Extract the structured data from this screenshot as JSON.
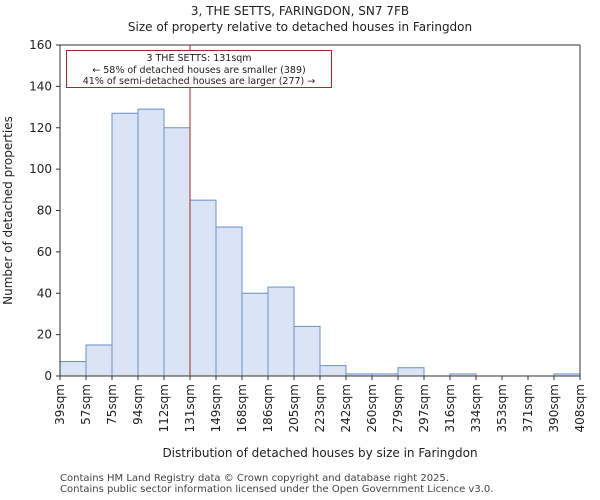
{
  "header": {
    "title": "3, THE SETTS, FARINGDON, SN7 7FB",
    "subtitle": "Size of property relative to detached houses in Faringdon"
  },
  "annotation": {
    "line1": "3 THE SETTS: 131sqm",
    "line2": "← 58% of detached houses are smaller (389)",
    "line3": "41% of semi-detached houses are larger (277) →"
  },
  "footer": {
    "line1": "Contains HM Land Registry data © Crown copyright and database right 2025.",
    "line2": "Contains public sector information licensed under the Open Government Licence v3.0."
  },
  "chart_data": {
    "type": "bar",
    "title": "Size of property relative to detached houses in Faringdon",
    "xlabel": "Distribution of detached houses by size in Faringdon",
    "ylabel": "Number of detached properties",
    "bin_edges": [
      "39sqm",
      "57sqm",
      "75sqm",
      "94sqm",
      "112sqm",
      "131sqm",
      "149sqm",
      "168sqm",
      "186sqm",
      "205sqm",
      "223sqm",
      "242sqm",
      "260sqm",
      "279sqm",
      "297sqm",
      "316sqm",
      "334sqm",
      "353sqm",
      "371sqm",
      "390sqm",
      "408sqm"
    ],
    "values": [
      7,
      15,
      127,
      129,
      120,
      85,
      72,
      40,
      43,
      24,
      5,
      1,
      1,
      4,
      0,
      1,
      0,
      0,
      0,
      1
    ],
    "ylim": [
      0,
      160
    ],
    "yticks": [
      0,
      20,
      40,
      60,
      80,
      100,
      120,
      140,
      160
    ],
    "marker_bin_index": 5,
    "marker_value": "131sqm",
    "colors": {
      "bar_fill": "#dae4f5",
      "bar_stroke": "#6a8fc8",
      "marker": "#b22222"
    }
  }
}
